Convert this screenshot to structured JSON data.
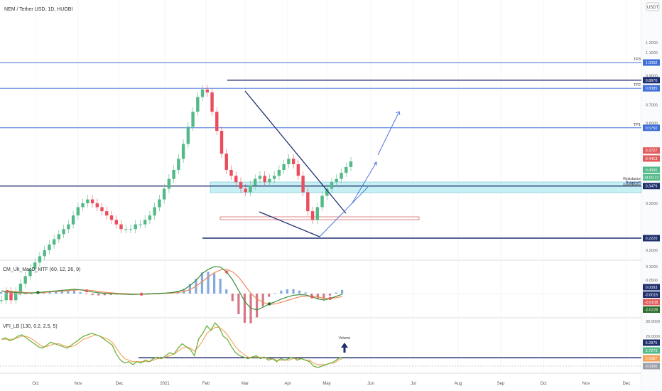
{
  "header": {
    "symbol_line": "NEM / Tether USD, 1D, HUOBI",
    "currency_badge": "USDT"
  },
  "colors": {
    "bull": "#53b987",
    "bear": "#eb4d5c",
    "level_line": "#3f6ed8",
    "navy_line": "#1f2f6e",
    "resistance_zone": "#c7f0f4",
    "macd_line": "#3a8f3a",
    "macd_signal": "#f0895a",
    "vfi_line": "#6fb23a",
    "vfi_signal": "#f3a25a",
    "hist_pos": "#5b8cd6",
    "hist_neg": "#c84a5e"
  },
  "chart_data": [
    {
      "type": "candlestick",
      "title": "NEM / Tether USD, 1D, HUOBI",
      "x_ticks": [
        "Oct",
        "Nov",
        "Dec",
        "2021",
        "Feb",
        "Mar",
        "Apr",
        "May",
        "Jun",
        "Jul",
        "Aug",
        "Sep",
        "Oct",
        "Nov",
        "Dec"
      ],
      "y_ticks": [
        "1.2000",
        "1.1000",
        "0.9000",
        "0.7000",
        "0.6000",
        "0.3000",
        "0.2000"
      ],
      "ylim": [
        0.16,
        1.26
      ],
      "series": [
        {
          "name": "NEM close (approx)",
          "values": [
            0.13,
            0.14,
            0.13,
            0.14,
            0.15,
            0.16,
            0.17,
            0.18,
            0.19,
            0.2,
            0.21,
            0.22,
            0.23,
            0.24,
            0.25,
            0.27,
            0.29,
            0.3,
            0.31,
            0.3,
            0.29,
            0.28,
            0.27,
            0.26,
            0.25,
            0.24,
            0.24,
            0.24,
            0.25,
            0.25,
            0.26,
            0.27,
            0.29,
            0.31,
            0.34,
            0.37,
            0.4,
            0.44,
            0.5,
            0.58,
            0.66,
            0.75,
            0.8,
            0.78,
            0.66,
            0.56,
            0.46,
            0.4,
            0.38,
            0.36,
            0.34,
            0.33,
            0.35,
            0.37,
            0.38,
            0.36,
            0.37,
            0.38,
            0.4,
            0.42,
            0.44,
            0.42,
            0.38,
            0.33,
            0.28,
            0.26,
            0.29,
            0.32,
            0.34,
            0.36,
            0.37,
            0.39,
            0.41,
            0.43
          ]
        }
      ],
      "price_labels": [
        {
          "text": "1.0092",
          "value": 1.0092
        },
        {
          "text": "0.8670",
          "value": 0.867
        },
        {
          "text": "0.8085",
          "value": 0.8085
        },
        {
          "text": "0.5750",
          "value": 0.575
        },
        {
          "text": "0.4727",
          "value": 0.4727
        },
        {
          "text": "0.4413",
          "value": 0.4413
        },
        {
          "text": "0.4000",
          "value": 0.4
        },
        {
          "text": "04:00:21",
          "value": 0.375
        },
        {
          "text": "0.3479",
          "value": 0.3479
        },
        {
          "text": "0.2220",
          "value": 0.222
        }
      ],
      "horizontal_levels": [
        {
          "label": "TP3",
          "value": 1.0092,
          "color": "#3f6ed8"
        },
        {
          "label": "",
          "value": 0.867,
          "color": "#1f2f6e"
        },
        {
          "label": "TP2",
          "value": 0.8085,
          "color": "#3f6ed8"
        },
        {
          "label": "TP1",
          "value": 0.575,
          "color": "#3f6ed8"
        },
        {
          "label": "Support",
          "value": 0.3479,
          "color": "#1f2f6e"
        },
        {
          "label": "",
          "value": 0.222,
          "color": "#1f2f6e"
        }
      ],
      "zone": {
        "labels": [
          "Resistance",
          "Resistance"
        ],
        "top": 0.4727,
        "bottom": 0.4413
      }
    },
    {
      "type": "line",
      "title": "CM_Ult_MacD_MTF (60, 12, 26, 9)",
      "y_ticks": [
        "0.1000",
        "0.0500",
        "0.0000"
      ],
      "price_labels": [
        {
          "text": "0.0093",
          "value": 0.0093
        },
        {
          "text": "-0.0015",
          "value": -0.0015
        },
        {
          "text": "-0.0108",
          "value": -0.0108
        },
        {
          "text": "-0.0228",
          "value": -0.0228
        }
      ],
      "series": [
        {
          "name": "macd",
          "values": [
            0.01,
            0.008,
            0.005,
            0.003,
            0.002,
            0.002,
            0.004,
            0.006,
            0.008,
            0.01,
            0.012,
            0.014,
            0.016,
            0.014,
            0.01,
            0.006,
            0.003,
            0.001,
            0.0,
            -0.001,
            -0.002,
            -0.003,
            -0.003,
            -0.002,
            -0.001,
            0.0,
            0.001,
            0.002,
            0.004,
            0.008,
            0.015,
            0.03,
            0.05,
            0.075,
            0.09,
            0.1,
            0.098,
            0.08,
            0.05,
            0.01,
            -0.03,
            -0.055,
            -0.06,
            -0.05,
            -0.038,
            -0.03,
            -0.02,
            -0.012,
            -0.006,
            -0.004,
            -0.005,
            -0.012,
            -0.02,
            -0.024,
            -0.018,
            -0.01,
            -0.002
          ]
        },
        {
          "name": "signal",
          "values": [
            0.009,
            0.009,
            0.008,
            0.006,
            0.004,
            0.003,
            0.003,
            0.004,
            0.006,
            0.008,
            0.009,
            0.011,
            0.013,
            0.014,
            0.013,
            0.011,
            0.008,
            0.005,
            0.003,
            0.001,
            0.0,
            -0.001,
            -0.002,
            -0.002,
            -0.002,
            -0.001,
            0.0,
            0.001,
            0.002,
            0.004,
            0.008,
            0.015,
            0.028,
            0.045,
            0.062,
            0.078,
            0.088,
            0.09,
            0.08,
            0.06,
            0.03,
            0.0,
            -0.02,
            -0.033,
            -0.04,
            -0.038,
            -0.032,
            -0.025,
            -0.018,
            -0.012,
            -0.009,
            -0.01,
            -0.013,
            -0.017,
            -0.018,
            -0.015,
            -0.011
          ]
        }
      ]
    },
    {
      "type": "line",
      "title": "VFI_LB (130, 0.2, 2.5, 5)",
      "y_ticks": [
        "30.0000",
        "20.0000",
        "10.0000",
        "0.0000"
      ],
      "annotation": "Volume",
      "level": 5.6,
      "price_labels": [
        {
          "text": "6.2875",
          "value": 6.2875
        },
        {
          "text": "5.7273",
          "value": 5.7273
        },
        {
          "text": "5.5687",
          "value": 5.5687
        },
        {
          "text": "0.0000",
          "value": 0.0
        }
      ],
      "series": [
        {
          "name": "vfi",
          "values": [
            18,
            19,
            17,
            18,
            20,
            21,
            19,
            17,
            15,
            13,
            12,
            14,
            16,
            15,
            14,
            13,
            12,
            14,
            16,
            18,
            20,
            21,
            22,
            21,
            20,
            18,
            16,
            14,
            8,
            4,
            2,
            3,
            1,
            3,
            2,
            4,
            3,
            5,
            6,
            5,
            7,
            9,
            8,
            12,
            15,
            13,
            11,
            7,
            18,
            22,
            27,
            24,
            29,
            26,
            20,
            18,
            13,
            9,
            7,
            6,
            5,
            6,
            7,
            5,
            6,
            4,
            5,
            3,
            5,
            4,
            5,
            6,
            4,
            5,
            4,
            3,
            0,
            -1,
            0,
            1,
            2,
            3,
            5,
            6
          ]
        },
        {
          "name": "signal",
          "values": [
            18,
            18,
            18,
            18,
            19,
            20,
            20,
            19,
            17,
            15,
            13,
            13,
            14,
            15,
            15,
            14,
            13,
            13,
            14,
            16,
            18,
            19,
            20,
            21,
            20,
            19,
            18,
            16,
            12,
            8,
            5,
            4,
            3,
            3,
            3,
            3,
            3,
            4,
            5,
            5,
            6,
            7,
            8,
            10,
            12,
            13,
            12,
            10,
            13,
            17,
            22,
            24,
            26,
            26,
            24,
            21,
            17,
            13,
            10,
            8,
            6,
            6,
            6,
            6,
            6,
            5,
            5,
            4,
            4,
            4,
            4,
            5,
            5,
            5,
            4,
            4,
            2,
            1,
            1,
            1,
            2,
            2,
            4,
            5
          ]
        }
      ]
    }
  ]
}
